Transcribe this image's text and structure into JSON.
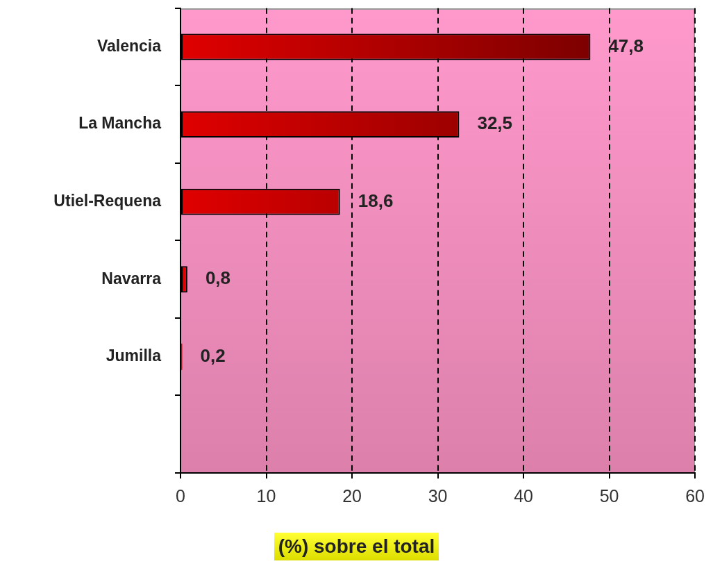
{
  "chart_data": {
    "type": "bar",
    "orientation": "horizontal",
    "xlabel": "(%) sobre el total",
    "categories": [
      "Valencia",
      "La Mancha",
      "Utiel-Requena",
      "Navarra",
      "Jumilla",
      null
    ],
    "values": [
      47.8,
      32.5,
      18.6,
      0.8,
      0.2,
      null
    ],
    "value_labels": [
      "47,8",
      "32,5",
      "18,6",
      "0,8",
      "0,2",
      null
    ],
    "color": "#e00000",
    "xlim": [
      0,
      60
    ],
    "xticks": [
      0,
      10,
      20,
      30,
      40,
      50,
      60
    ],
    "grid": "x",
    "legend": false
  }
}
